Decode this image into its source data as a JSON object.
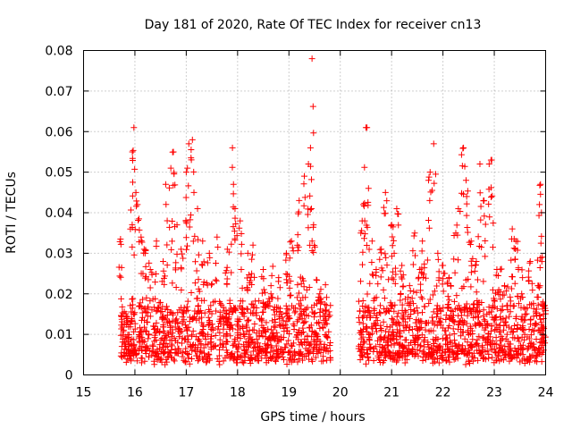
{
  "chart_data": {
    "type": "scatter",
    "title": "Day 181 of 2020, Rate Of TEC Index for receiver cn13",
    "xlabel": "GPS time / hours",
    "ylabel": "ROTI / TECUs",
    "xlim": [
      15,
      24
    ],
    "ylim": [
      0,
      0.08
    ],
    "x_ticks": [
      "15",
      "16",
      "17",
      "18",
      "19",
      "20",
      "21",
      "22",
      "23",
      "24"
    ],
    "y_ticks": [
      "0",
      "0.01",
      "0.02",
      "0.03",
      "0.04",
      "0.05",
      "0.06",
      "0.07",
      "0.08"
    ],
    "grid": true,
    "marker": "+",
    "color": "#ff0000",
    "data_gap": [
      19.85,
      20.35
    ],
    "series": [
      {
        "name": "ROTI",
        "points": [
          [
            15.72,
            0.0335
          ],
          [
            15.98,
            0.061
          ],
          [
            15.95,
            0.055
          ],
          [
            16.02,
            0.045
          ],
          [
            16.05,
            0.042
          ],
          [
            16.12,
            0.034
          ],
          [
            16.18,
            0.031
          ],
          [
            16.3,
            0.026
          ],
          [
            16.42,
            0.033
          ],
          [
            16.55,
            0.028
          ],
          [
            16.6,
            0.047
          ],
          [
            16.7,
            0.051
          ],
          [
            16.75,
            0.055
          ],
          [
            16.82,
            0.037
          ],
          [
            16.9,
            0.031
          ],
          [
            17.0,
            0.05
          ],
          [
            17.05,
            0.057
          ],
          [
            17.12,
            0.058
          ],
          [
            17.15,
            0.045
          ],
          [
            17.22,
            0.041
          ],
          [
            17.32,
            0.033
          ],
          [
            17.45,
            0.03
          ],
          [
            17.6,
            0.034
          ],
          [
            17.8,
            0.031
          ],
          [
            17.9,
            0.056
          ],
          [
            17.92,
            0.047
          ],
          [
            17.95,
            0.041
          ],
          [
            18.05,
            0.038
          ],
          [
            18.2,
            0.03
          ],
          [
            18.3,
            0.032
          ],
          [
            18.5,
            0.026
          ],
          [
            18.65,
            0.022
          ],
          [
            18.8,
            0.024
          ],
          [
            18.95,
            0.03
          ],
          [
            19.05,
            0.033
          ],
          [
            19.2,
            0.043
          ],
          [
            19.3,
            0.049
          ],
          [
            19.38,
            0.052
          ],
          [
            19.42,
            0.056
          ],
          [
            19.45,
            0.078
          ],
          [
            19.48,
            0.037
          ],
          [
            19.6,
            0.02
          ],
          [
            19.72,
            0.016
          ],
          [
            20.4,
            0.035
          ],
          [
            20.45,
            0.042
          ],
          [
            20.5,
            0.061
          ],
          [
            20.55,
            0.046
          ],
          [
            20.62,
            0.033
          ],
          [
            20.7,
            0.026
          ],
          [
            20.8,
            0.031
          ],
          [
            20.88,
            0.045
          ],
          [
            21.0,
            0.037
          ],
          [
            21.05,
            0.03
          ],
          [
            21.1,
            0.041
          ],
          [
            21.2,
            0.027
          ],
          [
            21.35,
            0.022
          ],
          [
            21.45,
            0.035
          ],
          [
            21.55,
            0.026
          ],
          [
            21.6,
            0.033
          ],
          [
            21.72,
            0.048
          ],
          [
            21.75,
            0.05
          ],
          [
            21.82,
            0.057
          ],
          [
            21.9,
            0.03
          ],
          [
            22.0,
            0.027
          ],
          [
            22.12,
            0.024
          ],
          [
            22.25,
            0.035
          ],
          [
            22.3,
            0.041
          ],
          [
            22.4,
            0.056
          ],
          [
            22.45,
            0.048
          ],
          [
            22.55,
            0.033
          ],
          [
            22.65,
            0.028
          ],
          [
            22.72,
            0.052
          ],
          [
            22.8,
            0.043
          ],
          [
            22.9,
            0.052
          ],
          [
            22.95,
            0.053
          ],
          [
            23.05,
            0.026
          ],
          [
            23.2,
            0.022
          ],
          [
            23.35,
            0.036
          ],
          [
            23.42,
            0.033
          ],
          [
            23.55,
            0.024
          ],
          [
            23.7,
            0.028
          ],
          [
            23.85,
            0.022
          ],
          [
            23.88,
            0.042
          ],
          [
            23.9,
            0.047
          ],
          [
            23.95,
            0.018
          ]
        ],
        "baseline_band": {
          "segments": [
            [
              15.72,
              19.82
            ],
            [
              20.35,
              24.0
            ]
          ],
          "typical_range": [
            0.004,
            0.018
          ]
        }
      }
    ]
  }
}
